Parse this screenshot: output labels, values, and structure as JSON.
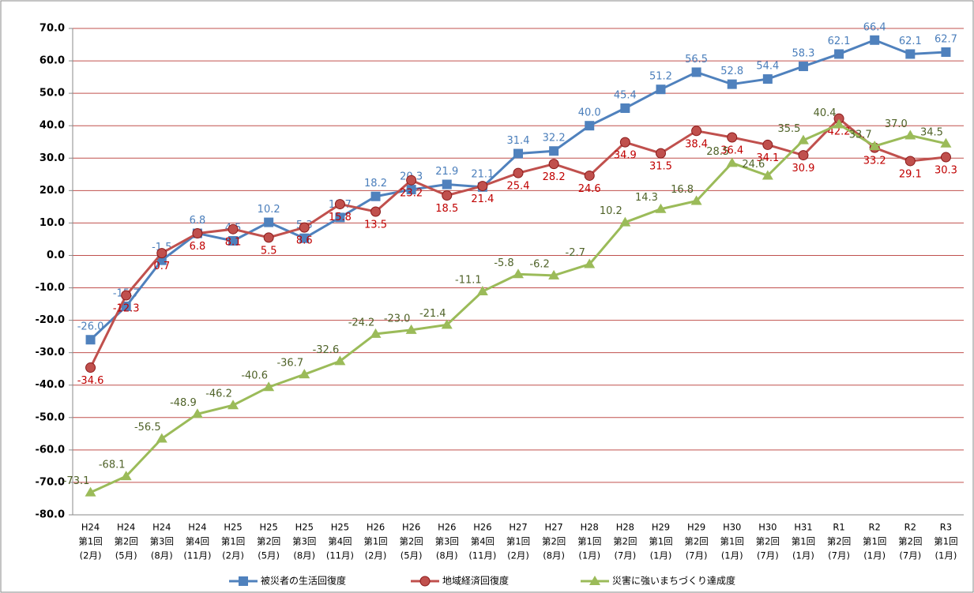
{
  "chart_data": {
    "type": "line",
    "categories": [
      [
        "H24",
        "第1回",
        "(2月)"
      ],
      [
        "H24",
        "第2回",
        "(5月)"
      ],
      [
        "H24",
        "第3回",
        "(8月)"
      ],
      [
        "H24",
        "第4回",
        "(11月)"
      ],
      [
        "H25",
        "第1回",
        "(2月)"
      ],
      [
        "H25",
        "第2回",
        "(5月)"
      ],
      [
        "H25",
        "第3回",
        "(8月)"
      ],
      [
        "H25",
        "第4回",
        "(11月)"
      ],
      [
        "H26",
        "第1回",
        "(2月)"
      ],
      [
        "H26",
        "第2回",
        "(5月)"
      ],
      [
        "H26",
        "第3回",
        "(8月)"
      ],
      [
        "H26",
        "第4回",
        "(11月)"
      ],
      [
        "H27",
        "第1回",
        "(2月)"
      ],
      [
        "H27",
        "第2回",
        "(8月)"
      ],
      [
        "H28",
        "第1回",
        "(1月)"
      ],
      [
        "H28",
        "第2回",
        "(7月)"
      ],
      [
        "H29",
        "第1回",
        "(1月)"
      ],
      [
        "H29",
        "第2回",
        "(7月)"
      ],
      [
        "H30",
        "第1回",
        "(1月)"
      ],
      [
        "H30",
        "第2回",
        "(7月)"
      ],
      [
        "H31",
        "第1回",
        "(1月)"
      ],
      [
        "R1",
        "第2回",
        "(7月)"
      ],
      [
        "R2",
        "第1回",
        "(1月)"
      ],
      [
        "R2",
        "第2回",
        "(7月)"
      ],
      [
        "R3",
        "第1回",
        "(1月)"
      ]
    ],
    "series": [
      {
        "name": "被災者の生活回復度",
        "color": "#4f81bd",
        "marker": "square",
        "label_color": "#4a7ebb",
        "values": [
          -26.0,
          -15.7,
          -1.5,
          6.8,
          4.5,
          10.2,
          5.3,
          11.7,
          18.2,
          20.3,
          21.9,
          21.1,
          31.4,
          32.2,
          40.0,
          45.4,
          51.2,
          56.5,
          52.8,
          54.4,
          58.3,
          62.1,
          66.4,
          62.1,
          62.7
        ],
        "value_labels": [
          "-26.0",
          "-15.7",
          "-1.5",
          "6.8",
          "4.5",
          "10.2",
          "5.3",
          "11.7",
          "18.2",
          "20.3",
          "21.9",
          "21.1",
          "31.4",
          "32.2",
          "40.0",
          "45.4",
          "51.2",
          "56.5",
          "52.8",
          "54.4",
          "58.3",
          "62.1",
          "66.4",
          "62.1",
          "62.7"
        ]
      },
      {
        "name": "地域経済回復度",
        "color": "#c0504d",
        "marker": "circle",
        "label_color": "#c00000",
        "values": [
          -34.6,
          -12.3,
          0.7,
          6.8,
          8.1,
          5.5,
          8.6,
          15.8,
          13.5,
          23.2,
          18.5,
          21.4,
          25.4,
          28.2,
          24.6,
          34.9,
          31.5,
          38.4,
          36.4,
          34.1,
          30.9,
          42.2,
          33.2,
          29.1,
          30.3
        ],
        "value_labels": [
          "-34.6",
          "-12.3",
          "0.7",
          "6.8",
          "8.1",
          "5.5",
          "8.6",
          "15.8",
          "13.5",
          "23.2",
          "18.5",
          "21.4",
          "25.4",
          "28.2",
          "24.6",
          "34.9",
          "31.5",
          "38.4",
          "36.4",
          "34.1",
          "30.9",
          "42.2",
          "33.2",
          "29.1",
          "30.3"
        ]
      },
      {
        "name": "災害に強いまちづくり達成度",
        "color": "#9bbb59",
        "marker": "triangle",
        "label_color": "#4f6228",
        "values": [
          -73.1,
          -68.1,
          -56.5,
          -48.9,
          -46.2,
          -40.6,
          -36.7,
          -32.6,
          -24.2,
          -23.0,
          -21.4,
          -11.1,
          -5.8,
          -6.2,
          -2.7,
          10.2,
          14.3,
          16.8,
          28.5,
          24.6,
          35.5,
          40.4,
          33.7,
          37.0,
          34.5
        ],
        "value_labels": [
          "-73.1",
          "-68.1",
          "-56.5",
          "-48.9",
          "-46.2",
          "-40.6",
          "-36.7",
          "-32.6",
          "-24.2",
          "-23.0",
          "-21.4",
          "-11.1",
          "-5.8",
          "-6.2",
          "-2.7",
          "10.2",
          "14.3",
          "16.8",
          "28.5",
          "24.6",
          "35.5",
          "40.4",
          "33.7",
          "37.0",
          "34.5"
        ]
      }
    ],
    "ylim": [
      -80,
      70
    ],
    "yticks": [
      {
        "value": -80,
        "label": "-80.0"
      },
      {
        "value": -70,
        "label": "-70.0"
      },
      {
        "value": -60,
        "label": "-60.0"
      },
      {
        "value": -50,
        "label": "-50.0"
      },
      {
        "value": -40,
        "label": "-40.0"
      },
      {
        "value": -30,
        "label": "-30.0"
      },
      {
        "value": -20,
        "label": "-20.0"
      },
      {
        "value": -10,
        "label": "-10.0"
      },
      {
        "value": 0,
        "label": "0.0"
      },
      {
        "value": 10,
        "label": "10.0"
      },
      {
        "value": 20,
        "label": "20.0"
      },
      {
        "value": 30,
        "label": "30.0"
      },
      {
        "value": 40,
        "label": "40.0"
      },
      {
        "value": 50,
        "label": "50.0"
      },
      {
        "value": 60,
        "label": "60.0"
      },
      {
        "value": 70,
        "label": "70.0"
      }
    ],
    "grid": true,
    "grid_color": "#c0504d",
    "legend": "bottom"
  }
}
